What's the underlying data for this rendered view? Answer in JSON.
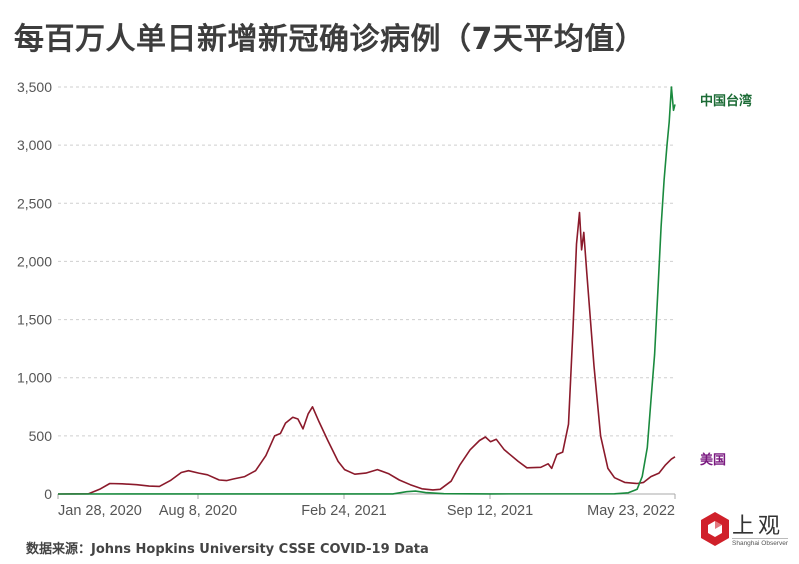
{
  "title": "每百万人单日新增新冠确诊病例（7天平均值）",
  "source": "数据来源：Johns Hopkins University CSSE COVID-19 Data",
  "logo": {
    "cn": "上观",
    "en": "Shanghai Observer",
    "color": "#d0202a"
  },
  "chart_data": {
    "type": "line",
    "title": "每百万人单日新增新冠确诊病例（7天平均值）",
    "xlabel": "",
    "ylabel": "",
    "ylim": [
      0,
      3500
    ],
    "yticks": [
      0,
      500,
      1000,
      1500,
      2000,
      2500,
      3000,
      3500
    ],
    "ytick_labels": [
      "0",
      "500",
      "1,000",
      "1,500",
      "2,000",
      "2,500",
      "3,000",
      "3,500"
    ],
    "xtick_labels": [
      "Jan 28, 2020",
      "Aug 8, 2020",
      "Feb 24, 2021",
      "Sep 12, 2021",
      "May 23, 2022"
    ],
    "x_range": [
      "Jan 28, 2020",
      "May 23, 2022"
    ],
    "grid": true,
    "legend": "inline labels at line ends (right)",
    "series": [
      {
        "name": "美国",
        "color": "#8b1a2b",
        "label_color": "#7a1a80",
        "points": [
          [
            "2020-01-28",
            0
          ],
          [
            "2020-03-10",
            2
          ],
          [
            "2020-03-25",
            40
          ],
          [
            "2020-04-08",
            90
          ],
          [
            "2020-04-25",
            88
          ],
          [
            "2020-05-15",
            80
          ],
          [
            "2020-06-01",
            68
          ],
          [
            "2020-06-15",
            65
          ],
          [
            "2020-06-30",
            115
          ],
          [
            "2020-07-15",
            185
          ],
          [
            "2020-07-25",
            200
          ],
          [
            "2020-08-08",
            180
          ],
          [
            "2020-08-20",
            165
          ],
          [
            "2020-09-05",
            120
          ],
          [
            "2020-09-15",
            115
          ],
          [
            "2020-09-25",
            130
          ],
          [
            "2020-10-10",
            150
          ],
          [
            "2020-10-25",
            200
          ],
          [
            "2020-11-08",
            330
          ],
          [
            "2020-11-20",
            500
          ],
          [
            "2020-11-28",
            520
          ],
          [
            "2020-12-05",
            610
          ],
          [
            "2020-12-15",
            660
          ],
          [
            "2020-12-22",
            645
          ],
          [
            "2020-12-29",
            560
          ],
          [
            "2021-01-05",
            690
          ],
          [
            "2021-01-11",
            750
          ],
          [
            "2021-01-20",
            620
          ],
          [
            "2021-02-01",
            460
          ],
          [
            "2021-02-15",
            280
          ],
          [
            "2021-02-24",
            210
          ],
          [
            "2021-03-10",
            170
          ],
          [
            "2021-03-25",
            180
          ],
          [
            "2021-04-10",
            210
          ],
          [
            "2021-04-25",
            175
          ],
          [
            "2021-05-10",
            120
          ],
          [
            "2021-05-25",
            80
          ],
          [
            "2021-06-10",
            45
          ],
          [
            "2021-06-25",
            35
          ],
          [
            "2021-07-05",
            40
          ],
          [
            "2021-07-20",
            110
          ],
          [
            "2021-08-01",
            250
          ],
          [
            "2021-08-15",
            380
          ],
          [
            "2021-08-28",
            460
          ],
          [
            "2021-09-05",
            490
          ],
          [
            "2021-09-12",
            450
          ],
          [
            "2021-09-20",
            470
          ],
          [
            "2021-10-01",
            380
          ],
          [
            "2021-10-20",
            280
          ],
          [
            "2021-11-01",
            225
          ],
          [
            "2021-11-20",
            230
          ],
          [
            "2021-11-30",
            260
          ],
          [
            "2021-12-05",
            220
          ],
          [
            "2021-12-12",
            340
          ],
          [
            "2021-12-20",
            360
          ],
          [
            "2021-12-28",
            600
          ],
          [
            "2022-01-03",
            1400
          ],
          [
            "2022-01-08",
            2150
          ],
          [
            "2022-01-12",
            2420
          ],
          [
            "2022-01-15",
            2100
          ],
          [
            "2022-01-18",
            2250
          ],
          [
            "2022-01-22",
            1900
          ],
          [
            "2022-02-01",
            1100
          ],
          [
            "2022-02-10",
            500
          ],
          [
            "2022-02-20",
            220
          ],
          [
            "2022-03-01",
            140
          ],
          [
            "2022-03-15",
            100
          ],
          [
            "2022-04-01",
            90
          ],
          [
            "2022-04-10",
            100
          ],
          [
            "2022-04-20",
            150
          ],
          [
            "2022-05-01",
            180
          ],
          [
            "2022-05-10",
            250
          ],
          [
            "2022-05-18",
            300
          ],
          [
            "2022-05-23",
            320
          ]
        ]
      },
      {
        "name": "中国台湾",
        "color": "#1a8a3e",
        "label_color": "#1b6b35",
        "points": [
          [
            "2020-01-28",
            0
          ],
          [
            "2021-05-01",
            1
          ],
          [
            "2021-05-20",
            20
          ],
          [
            "2021-06-01",
            25
          ],
          [
            "2021-06-15",
            12
          ],
          [
            "2021-07-10",
            3
          ],
          [
            "2021-09-12",
            1
          ],
          [
            "2022-03-01",
            2
          ],
          [
            "2022-03-20",
            10
          ],
          [
            "2022-04-01",
            40
          ],
          [
            "2022-04-08",
            150
          ],
          [
            "2022-04-15",
            400
          ],
          [
            "2022-04-20",
            800
          ],
          [
            "2022-04-25",
            1200
          ],
          [
            "2022-04-30",
            1800
          ],
          [
            "2022-05-04",
            2300
          ],
          [
            "2022-05-08",
            2700
          ],
          [
            "2022-05-12",
            3000
          ],
          [
            "2022-05-15",
            3200
          ],
          [
            "2022-05-18",
            3500
          ],
          [
            "2022-05-21",
            3300
          ],
          [
            "2022-05-23",
            3350
          ]
        ]
      }
    ]
  }
}
